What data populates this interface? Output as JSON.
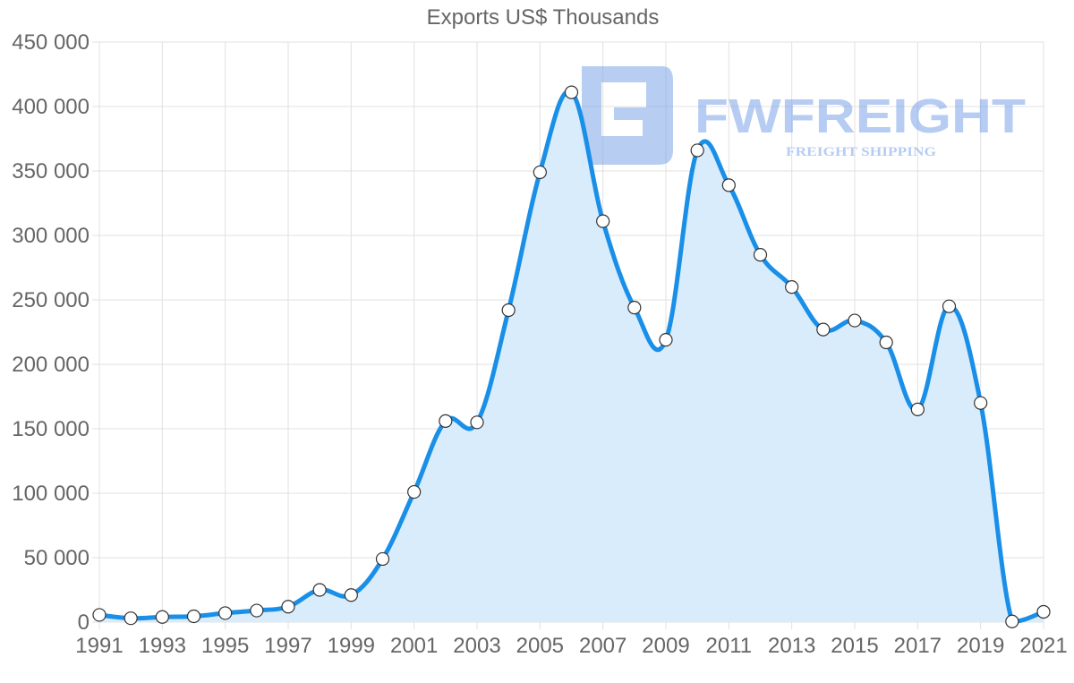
{
  "chart_data": {
    "type": "area",
    "title": "Exports US$ Thousands",
    "xlabel": "",
    "ylabel": "",
    "x": [
      1991,
      1992,
      1993,
      1994,
      1995,
      1996,
      1997,
      1998,
      1999,
      2000,
      2001,
      2002,
      2003,
      2004,
      2005,
      2006,
      2007,
      2008,
      2009,
      2010,
      2011,
      2012,
      2013,
      2014,
      2015,
      2016,
      2017,
      2018,
      2019,
      2020,
      2021
    ],
    "series": [
      {
        "name": "Exports US$ Thousands",
        "values": [
          5600,
          3000,
          4000,
          4500,
          7000,
          9000,
          12000,
          25000,
          21000,
          49000,
          101000,
          156000,
          155000,
          242000,
          349000,
          411000,
          311000,
          244000,
          219000,
          366000,
          339000,
          285000,
          260000,
          227000,
          234000,
          217000,
          165000,
          245000,
          170000,
          500,
          8000
        ]
      }
    ],
    "ylim": [
      0,
      450000
    ],
    "yticks": [
      "0",
      "50 000",
      "100 000",
      "150 000",
      "200 000",
      "250 000",
      "300 000",
      "350 000",
      "400 000",
      "450 000"
    ],
    "xticks": [
      "1991",
      "1993",
      "1995",
      "1997",
      "1999",
      "2001",
      "2003",
      "2005",
      "2007",
      "2009",
      "2011",
      "2013",
      "2015",
      "2017",
      "2019",
      "2021"
    ],
    "grid": true,
    "legend": "none",
    "colors": {
      "line": "#1a8fe8",
      "fill": "#d7ebfb",
      "grid": "#e0e0e0",
      "point_fill": "#ffffff",
      "point_stroke": "#333333"
    }
  },
  "watermark": {
    "brand": "FWFREIGHT",
    "tagline": "FREIGHT SHIPPING",
    "color": "#7ba4e8"
  }
}
